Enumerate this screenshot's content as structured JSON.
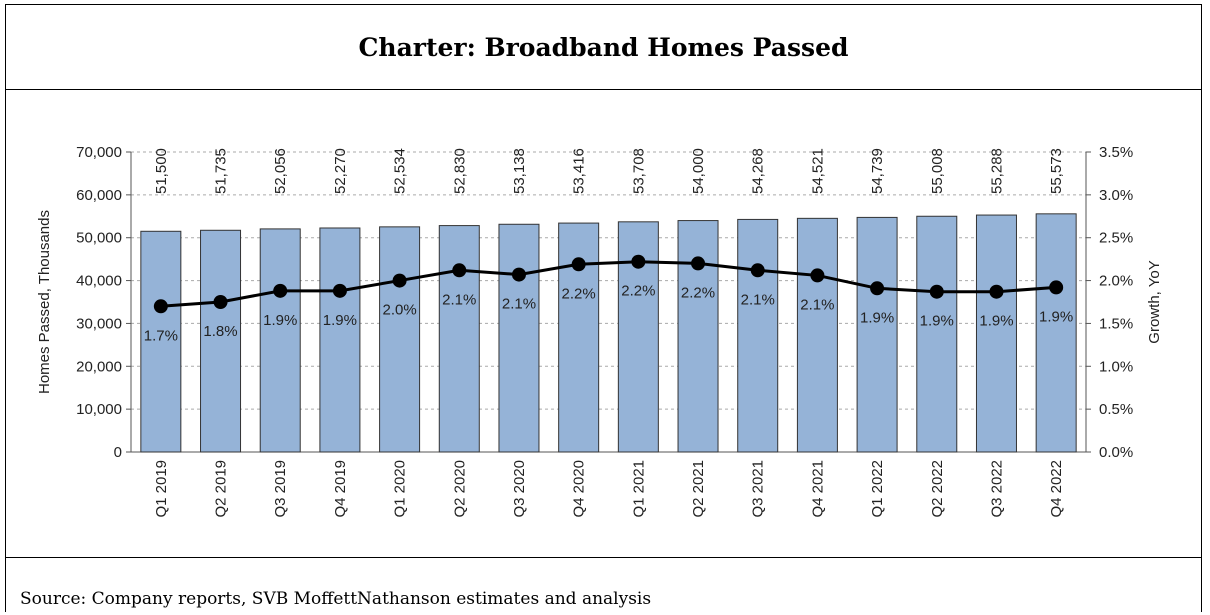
{
  "title": "Charter: Broadband Homes Passed",
  "source": "Source: Company reports, SVB MoffettNathanson estimates and analysis",
  "colors": {
    "bar_fill": "#95b3d7",
    "bar_stroke": "#333333",
    "line": "#000000",
    "grid": "#aaaaaa"
  },
  "chart_data": {
    "type": "bar",
    "categories": [
      "Q1 2019",
      "Q2 2019",
      "Q3 2019",
      "Q4 2019",
      "Q1 2020",
      "Q2 2020",
      "Q3 2020",
      "Q4 2020",
      "Q1 2021",
      "Q2 2021",
      "Q3 2021",
      "Q4 2021",
      "Q1 2022",
      "Q2 2022",
      "Q3 2022",
      "Q4 2022"
    ],
    "series": [
      {
        "type": "bar",
        "axis": "left",
        "values": [
          51500,
          51735,
          52056,
          52270,
          52534,
          52830,
          53138,
          53416,
          53708,
          54000,
          54268,
          54521,
          54739,
          55008,
          55288,
          55573
        ],
        "labels": [
          "51,500",
          "51,735",
          "52,056",
          "52,270",
          "52,534",
          "52,830",
          "53,138",
          "53,416",
          "53,708",
          "54,000",
          "54,268",
          "54,521",
          "54,739",
          "55,008",
          "55,288",
          "55,573"
        ]
      },
      {
        "type": "line",
        "axis": "right",
        "values": [
          1.7,
          1.75,
          1.88,
          1.88,
          2.0,
          2.12,
          2.07,
          2.19,
          2.22,
          2.2,
          2.12,
          2.06,
          1.91,
          1.87,
          1.87,
          1.92
        ],
        "labels": [
          "1.7%",
          "1.8%",
          "1.9%",
          "1.9%",
          "2.0%",
          "2.1%",
          "2.1%",
          "2.2%",
          "2.2%",
          "2.2%",
          "2.1%",
          "2.1%",
          "1.9%",
          "1.9%",
          "1.9%",
          "1.9%"
        ]
      }
    ],
    "y_left": {
      "label": "Homes Passed, Thousands",
      "range": [
        0,
        70000
      ],
      "ticks": [
        "0",
        "10,000",
        "20,000",
        "30,000",
        "40,000",
        "50,000",
        "60,000",
        "70,000"
      ]
    },
    "y_right": {
      "label": "Growth, YoY",
      "range": [
        0.0,
        3.5
      ],
      "ticks": [
        "0.0%",
        "0.5%",
        "1.0%",
        "1.5%",
        "2.0%",
        "2.5%",
        "3.0%",
        "3.5%"
      ]
    },
    "grid": true,
    "legend": "none"
  }
}
